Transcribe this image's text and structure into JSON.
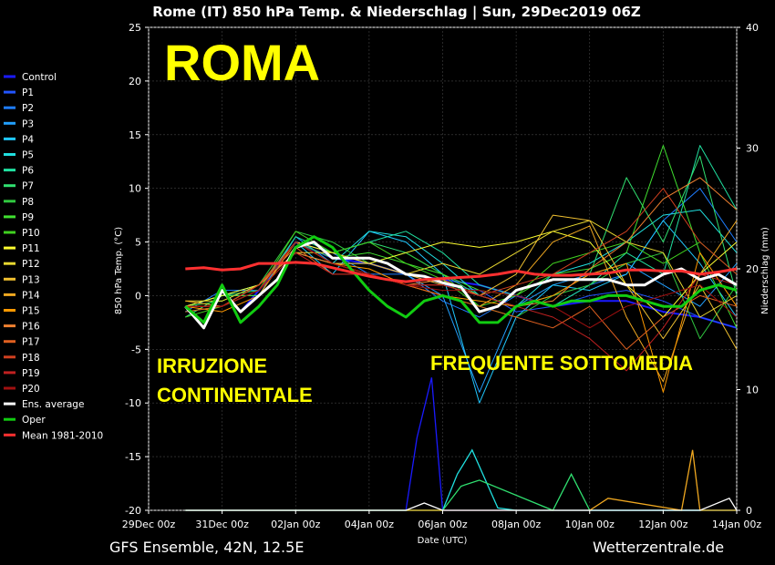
{
  "chart_data": {
    "type": "line",
    "title": "Rome  (IT)  850 hPa Temp. & Niederschlag | Sun, 29Dec2019 06Z",
    "xlabel": "Date (UTC)",
    "ylabel": "850 hPa Temp. (°C)",
    "ylabel_right": "Niederschlag (mm)",
    "xlim": [
      0,
      16
    ],
    "ylim": [
      -20,
      25
    ],
    "ylim_right": [
      0,
      40
    ],
    "xticks": [
      "29Dec 00z",
      "31Dec 00z",
      "02Jan 00z",
      "04Jan 00z",
      "06Jan 00z",
      "08Jan 00z",
      "10Jan 00z",
      "12Jan 00z",
      "14Jan 00z"
    ],
    "yticks": [
      "25",
      "20",
      "15",
      "10",
      "5",
      "0",
      "-5",
      "-10",
      "-15",
      "-20"
    ],
    "yticks_right": [
      "40",
      "30",
      "20",
      "10",
      "0"
    ],
    "grid": true,
    "legend_position": "left",
    "series": [
      {
        "name": "Control",
        "color": "#1a1aff",
        "width": 2,
        "x": [
          1,
          1.5,
          2,
          2.5,
          3,
          4,
          5,
          6,
          7,
          8,
          9,
          10,
          11,
          12,
          13,
          14,
          15,
          16
        ],
        "y": [
          -1,
          -2.5,
          0.5,
          -1.5,
          0.5,
          5,
          3.5,
          3,
          2,
          1.5,
          1,
          0,
          -1,
          -0.5,
          -0.5,
          -1.5,
          -2,
          -3
        ]
      },
      {
        "name": "P1",
        "color": "#2255ff",
        "width": 1,
        "x": [
          1,
          2,
          3,
          4,
          5,
          6,
          7,
          8,
          9,
          10,
          11,
          12,
          13,
          14,
          15,
          16
        ],
        "y": [
          -1,
          0,
          0,
          5,
          3,
          3,
          2,
          1,
          0.5,
          -1.5,
          -1,
          0,
          0.5,
          -0.5,
          -2,
          -3
        ]
      },
      {
        "name": "P2",
        "color": "#1e7dff",
        "width": 1,
        "x": [
          1,
          2,
          3,
          4,
          5,
          6,
          7,
          8,
          9,
          10,
          11,
          12,
          13,
          14,
          15,
          16
        ],
        "y": [
          -1.5,
          0.5,
          0.5,
          5,
          4,
          2,
          2,
          -0.5,
          -2,
          0,
          -1,
          1,
          2,
          7,
          10,
          5
        ]
      },
      {
        "name": "P3",
        "color": "#22a0ff",
        "width": 1,
        "x": [
          1,
          2,
          3,
          4,
          5,
          6,
          7,
          8,
          9,
          10,
          11,
          12,
          13,
          14,
          15,
          16
        ],
        "y": [
          -1,
          0,
          0,
          5.5,
          3,
          3,
          2,
          0,
          -9,
          -1,
          1,
          2,
          3,
          1,
          -1,
          3
        ]
      },
      {
        "name": "P4",
        "color": "#20c8ff",
        "width": 1,
        "x": [
          1,
          2,
          3,
          4,
          5,
          6,
          7,
          8,
          9,
          10,
          11,
          12,
          13,
          14,
          15,
          16
        ],
        "y": [
          -1,
          0,
          1,
          5,
          2,
          6,
          5,
          2,
          -10,
          -2,
          1,
          0.5,
          2,
          7,
          3,
          -2
        ]
      },
      {
        "name": "P5",
        "color": "#20e0e0",
        "width": 1,
        "x": [
          1,
          2,
          3,
          4,
          5,
          6,
          7,
          8,
          9,
          10,
          11,
          12,
          13,
          14,
          15,
          16
        ],
        "y": [
          -2,
          0,
          1,
          4,
          3,
          6,
          5.5,
          3,
          0,
          -1,
          2,
          3,
          5,
          7.5,
          8,
          4
        ]
      },
      {
        "name": "P6",
        "color": "#20e0a0",
        "width": 1,
        "x": [
          1,
          2,
          3,
          4,
          5,
          6,
          7,
          8,
          9,
          10,
          11,
          12,
          13,
          14,
          15,
          16
        ],
        "y": [
          -1.5,
          -1,
          0.5,
          5.5,
          4,
          5,
          6,
          4,
          1,
          0,
          -1,
          1,
          4,
          2,
          14,
          8
        ]
      },
      {
        "name": "P7",
        "color": "#30e070",
        "width": 1,
        "x": [
          1,
          2,
          3,
          4,
          5,
          6,
          7,
          8,
          9,
          10,
          11,
          12,
          13,
          14,
          15,
          16
        ],
        "y": [
          -2,
          0,
          0.5,
          5,
          4,
          5,
          4,
          2,
          0,
          -1,
          0,
          2,
          11,
          5,
          13,
          0
        ]
      },
      {
        "name": "P8",
        "color": "#30c840",
        "width": 1,
        "x": [
          1,
          2,
          3,
          4,
          5,
          6,
          7,
          8,
          9,
          10,
          11,
          12,
          13,
          14,
          15,
          16
        ],
        "y": [
          -1,
          -0.5,
          1,
          6,
          5,
          3,
          4,
          2,
          -1,
          -2,
          0,
          1,
          3,
          4,
          -4,
          1
        ]
      },
      {
        "name": "P9",
        "color": "#40e030",
        "width": 1,
        "x": [
          1,
          2,
          3,
          4,
          5,
          6,
          7,
          8,
          9,
          10,
          11,
          12,
          13,
          14,
          15,
          16
        ],
        "y": [
          -1,
          0,
          0,
          5,
          3.5,
          4,
          3,
          2,
          0.5,
          0,
          2,
          2.5,
          4,
          14,
          4,
          -3
        ]
      },
      {
        "name": "P10",
        "color": "#40d020",
        "width": 1,
        "x": [
          1,
          2,
          3,
          4,
          5,
          6,
          7,
          8,
          9,
          10,
          11,
          12,
          13,
          14,
          15,
          16
        ],
        "y": [
          -2,
          -1,
          0.5,
          6,
          4,
          5,
          3,
          1.5,
          -1,
          0,
          3,
          4,
          5,
          3,
          5,
          2
        ]
      },
      {
        "name": "P11",
        "color": "#ffff30",
        "width": 1,
        "x": [
          1,
          2,
          3,
          4,
          5,
          6,
          7,
          8,
          9,
          10,
          11,
          12,
          13,
          14,
          15,
          16
        ],
        "y": [
          -1,
          0,
          1,
          5,
          4,
          3,
          4,
          5,
          4.5,
          5,
          6,
          5,
          1,
          -2,
          2,
          5
        ]
      },
      {
        "name": "P12",
        "color": "#e8d830",
        "width": 1,
        "x": [
          1,
          2,
          3,
          4,
          5,
          6,
          7,
          8,
          9,
          10,
          11,
          12,
          13,
          14,
          15,
          16
        ],
        "y": [
          -0.5,
          -0.5,
          1,
          4,
          4,
          3,
          2,
          3,
          2,
          4,
          6,
          7,
          5,
          4,
          -2,
          0
        ]
      },
      {
        "name": "P13",
        "color": "#f0c030",
        "width": 1,
        "x": [
          1,
          2,
          3,
          4,
          5,
          6,
          7,
          8,
          9,
          10,
          11,
          12,
          13,
          14,
          15,
          16
        ],
        "y": [
          -1,
          -1,
          0.5,
          5,
          3,
          3,
          2,
          1,
          0,
          2,
          7.5,
          7,
          1,
          -4,
          1,
          -5
        ]
      },
      {
        "name": "P14",
        "color": "#f0a820",
        "width": 1,
        "x": [
          1,
          2,
          3,
          4,
          5,
          6,
          7,
          8,
          9,
          10,
          11,
          12,
          13,
          14,
          15,
          16
        ],
        "y": [
          -0.5,
          -1,
          1,
          4,
          3,
          2,
          1,
          0,
          -1,
          1,
          5,
          6.5,
          -2,
          -8,
          2,
          7
        ]
      },
      {
        "name": "P15",
        "color": "#ff9900",
        "width": 1,
        "x": [
          1,
          2,
          3,
          4,
          5,
          6,
          7,
          8,
          9,
          10,
          11,
          12,
          13,
          14,
          15,
          16
        ],
        "y": [
          -1,
          -1.5,
          0,
          5,
          3,
          2.5,
          1,
          0,
          -0.5,
          -1,
          0,
          2,
          3,
          -9,
          4,
          -1
        ]
      },
      {
        "name": "P16",
        "color": "#f08030",
        "width": 1,
        "x": [
          1,
          2,
          3,
          4,
          5,
          6,
          7,
          8,
          9,
          10,
          11,
          12,
          13,
          14,
          15,
          16
        ],
        "y": [
          -1,
          -1,
          1,
          4,
          3,
          2,
          1,
          1.5,
          0,
          -1,
          -0.5,
          2.5,
          5,
          9,
          11,
          8
        ]
      },
      {
        "name": "P17",
        "color": "#e06020",
        "width": 1,
        "x": [
          1,
          2,
          3,
          4,
          5,
          6,
          7,
          8,
          9,
          10,
          11,
          12,
          13,
          14,
          15,
          16
        ],
        "y": [
          -1.5,
          -1,
          1,
          4.5,
          2,
          2,
          1,
          0,
          -1,
          -2,
          -3,
          -1,
          -5,
          -2,
          0,
          -1
        ]
      },
      {
        "name": "P18",
        "color": "#d04020",
        "width": 1,
        "x": [
          1,
          2,
          3,
          4,
          5,
          6,
          7,
          8,
          9,
          10,
          11,
          12,
          13,
          14,
          15,
          16
        ],
        "y": [
          -1,
          -1,
          1,
          5,
          3,
          2,
          1,
          1,
          0,
          1,
          2,
          4,
          6,
          10,
          5,
          2
        ]
      },
      {
        "name": "P19",
        "color": "#c02020",
        "width": 1,
        "x": [
          1,
          2,
          3,
          4,
          5,
          6,
          7,
          8,
          9,
          10,
          11,
          12,
          13,
          14,
          15,
          16
        ],
        "y": [
          -1,
          -1,
          0.5,
          4,
          2,
          2,
          1,
          1,
          0,
          -1,
          -2,
          -4,
          -7,
          -3,
          2,
          1
        ]
      },
      {
        "name": "P20",
        "color": "#a01010",
        "width": 1,
        "x": [
          1,
          2,
          3,
          4,
          5,
          6,
          7,
          8,
          9,
          10,
          11,
          12,
          13,
          14,
          15,
          16
        ],
        "y": [
          -1,
          -1,
          0.5,
          5,
          3,
          2,
          1,
          0.5,
          0.5,
          0,
          -1,
          -3,
          -1,
          0,
          1,
          -2
        ]
      },
      {
        "name": "Ens. average",
        "color": "#ffffff",
        "width": 3,
        "x": [
          1,
          1.5,
          2,
          2.5,
          3,
          3.5,
          4,
          4.5,
          5,
          5.5,
          6,
          6.5,
          7,
          7.5,
          8,
          8.5,
          9,
          9.5,
          10,
          10.5,
          11,
          11.5,
          12,
          12.5,
          13,
          13.5,
          14,
          14.5,
          15,
          15.5,
          16
        ],
        "y": [
          -1,
          -3,
          0.5,
          -1.5,
          0,
          1.5,
          4.5,
          5,
          3.5,
          3.5,
          3.5,
          3,
          2,
          1.8,
          1.2,
          0.8,
          -1.5,
          -1,
          0.5,
          1,
          1.5,
          1.5,
          1.5,
          1.5,
          1,
          1,
          2,
          2.5,
          1.5,
          2,
          1
        ]
      },
      {
        "name": "Oper",
        "color": "#11cc11",
        "width": 3,
        "x": [
          1,
          1.5,
          2,
          2.5,
          3,
          3.5,
          4,
          4.5,
          5,
          5.5,
          6,
          6.5,
          7,
          7.5,
          8,
          8.5,
          9,
          9.5,
          10,
          10.5,
          11,
          11.5,
          12,
          12.5,
          13,
          13.5,
          14,
          14.5,
          15,
          15.5,
          16
        ],
        "y": [
          -1,
          -2.5,
          1,
          -2.5,
          -1,
          1,
          4.5,
          5.5,
          4.5,
          2.5,
          0.5,
          -1,
          -2,
          -0.5,
          0,
          -0.5,
          -2.5,
          -2.5,
          -1,
          -0.5,
          -1,
          -0.5,
          -0.5,
          0,
          0,
          -0.5,
          -1,
          -1,
          0.5,
          1,
          0.5
        ]
      },
      {
        "name": "Mean 1981-2010",
        "color": "#ff3030",
        "width": 3,
        "x": [
          1,
          1.5,
          2,
          2.5,
          3,
          3.5,
          4,
          4.5,
          5,
          5.5,
          6,
          6.5,
          7,
          7.5,
          8,
          8.5,
          9,
          9.5,
          10,
          10.5,
          11,
          11.5,
          12,
          12.5,
          13,
          13.5,
          14,
          14.5,
          15,
          15.5,
          16
        ],
        "y": [
          2.5,
          2.6,
          2.4,
          2.5,
          3,
          3,
          3.1,
          3,
          2.6,
          2.2,
          1.8,
          1.5,
          1.3,
          1.5,
          1.6,
          1.7,
          1.8,
          2.0,
          2.3,
          2.0,
          1.9,
          1.9,
          2.0,
          2.1,
          2.4,
          2.4,
          2.3,
          2.3,
          2.0,
          2.2,
          2.5
        ]
      }
    ],
    "precipitation": [
      {
        "color": "#1a1aff",
        "x": [
          1,
          7,
          7.3,
          7.7,
          8,
          16
        ],
        "y": [
          0,
          0,
          6,
          11,
          0,
          0
        ]
      },
      {
        "color": "#20e0e0",
        "x": [
          1,
          8,
          8.4,
          8.8,
          9.5,
          10,
          16
        ],
        "y": [
          0,
          0,
          3,
          5,
          0.2,
          0,
          0
        ]
      },
      {
        "color": "#30e070",
        "x": [
          1,
          8,
          8.5,
          9,
          11,
          11.5,
          12,
          16
        ],
        "y": [
          0,
          0,
          2,
          2.5,
          0,
          3,
          0,
          0
        ]
      },
      {
        "color": "#f0a820",
        "x": [
          1,
          12,
          12.5,
          14.5,
          14.8,
          15,
          16
        ],
        "y": [
          0,
          0,
          1,
          0,
          5,
          0,
          0
        ]
      },
      {
        "color": "#ffffff",
        "x": [
          1,
          7,
          7.5,
          8,
          15,
          15.8,
          16
        ],
        "y": [
          0,
          0,
          0.6,
          0,
          0,
          1,
          0
        ]
      }
    ],
    "annotations": [
      "ROMA",
      "IRRUZIONE",
      "CONTINENTALE",
      "FREQUENTE SOTTOMEDIA"
    ],
    "footer_left": "GFS Ensemble, 42N, 12.5E",
    "footer_right": "Wetterzentrale.de"
  }
}
